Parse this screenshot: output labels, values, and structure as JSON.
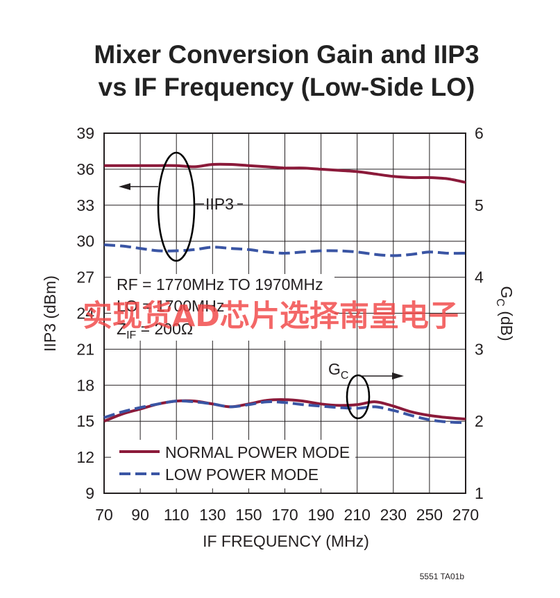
{
  "chart_data": {
    "type": "line",
    "title": [
      "Mixer Conversion Gain and IIP3",
      "vs IF Frequency (Low-Side LO)"
    ],
    "xlabel": "IF FREQUENCY (MHz)",
    "ylabel_left": "IIP3 (dBm)",
    "ylabel_right": {
      "base": "G",
      "sub": "C",
      "rest": " (dB)"
    },
    "x_ticks": [
      "70",
      "90",
      "110",
      "130",
      "150",
      "170",
      "190",
      "210",
      "230",
      "250",
      "270"
    ],
    "y_left_ticks": [
      "9",
      "12",
      "15",
      "18",
      "21",
      "24",
      "27",
      "30",
      "33",
      "36",
      "39"
    ],
    "y_right_ticks": [
      "1",
      "2",
      "3",
      "4",
      "5",
      "6"
    ],
    "xlim": [
      70,
      270
    ],
    "ylim_left": [
      9,
      39
    ],
    "ylim_right": [
      1,
      6
    ],
    "grid": true,
    "legend_position": "bottom-left",
    "colors": {
      "normal": "#8b1a3a",
      "low": "#3a55a4"
    },
    "series": [
      {
        "name": "NORMAL POWER MODE",
        "group": "IIP3",
        "axis": "left",
        "style": "solid",
        "x": [
          70,
          80,
          90,
          100,
          110,
          120,
          130,
          140,
          150,
          160,
          170,
          180,
          190,
          200,
          210,
          220,
          230,
          240,
          250,
          260,
          270
        ],
        "y": [
          36.3,
          36.3,
          36.3,
          36.3,
          36.3,
          36.2,
          36.4,
          36.4,
          36.3,
          36.2,
          36.1,
          36.1,
          36.0,
          35.9,
          35.8,
          35.6,
          35.4,
          35.3,
          35.3,
          35.2,
          34.9
        ]
      },
      {
        "name": "LOW POWER MODE",
        "group": "IIP3",
        "axis": "left",
        "style": "dashed",
        "x": [
          70,
          80,
          90,
          100,
          110,
          120,
          130,
          140,
          150,
          160,
          170,
          180,
          190,
          200,
          210,
          220,
          230,
          240,
          250,
          260,
          270
        ],
        "y": [
          29.7,
          29.6,
          29.4,
          29.2,
          29.2,
          29.3,
          29.5,
          29.4,
          29.3,
          29.1,
          29.0,
          29.1,
          29.2,
          29.2,
          29.1,
          28.9,
          28.8,
          28.9,
          29.1,
          29.0,
          29.0
        ]
      },
      {
        "name": "NORMAL POWER MODE",
        "group": "GC",
        "axis": "right",
        "style": "solid",
        "x": [
          70,
          80,
          90,
          100,
          110,
          120,
          130,
          140,
          150,
          160,
          170,
          180,
          190,
          200,
          210,
          220,
          230,
          240,
          250,
          260,
          270
        ],
        "y": [
          2.0,
          2.1,
          2.17,
          2.24,
          2.28,
          2.28,
          2.24,
          2.2,
          2.24,
          2.29,
          2.3,
          2.28,
          2.24,
          2.22,
          2.23,
          2.27,
          2.21,
          2.13,
          2.08,
          2.05,
          2.03
        ]
      },
      {
        "name": "LOW POWER MODE",
        "group": "GC",
        "axis": "right",
        "style": "dashed",
        "x": [
          70,
          80,
          90,
          100,
          110,
          120,
          130,
          140,
          150,
          160,
          170,
          180,
          190,
          200,
          210,
          220,
          230,
          240,
          250,
          260,
          270
        ],
        "y": [
          2.05,
          2.13,
          2.19,
          2.24,
          2.28,
          2.27,
          2.24,
          2.2,
          2.23,
          2.27,
          2.26,
          2.23,
          2.21,
          2.19,
          2.18,
          2.2,
          2.15,
          2.08,
          2.02,
          1.99,
          1.98
        ]
      }
    ],
    "annotations": {
      "iip3_label": "IIP3",
      "gc_label": {
        "base": "G",
        "sub": "C"
      },
      "conditions": {
        "rf": "RF = 1770MHz TO 1970MHz",
        "lo": "LO = 1700MHz",
        "zif": {
          "base": "Z",
          "sub": "IF",
          "rest": " = 200Ω"
        }
      }
    },
    "legend": [
      "NORMAL POWER MODE",
      "LOW POWER MODE"
    ]
  },
  "footer_code": "5551 TA01b",
  "watermark": "实现货AD芯片选择南皇电子"
}
